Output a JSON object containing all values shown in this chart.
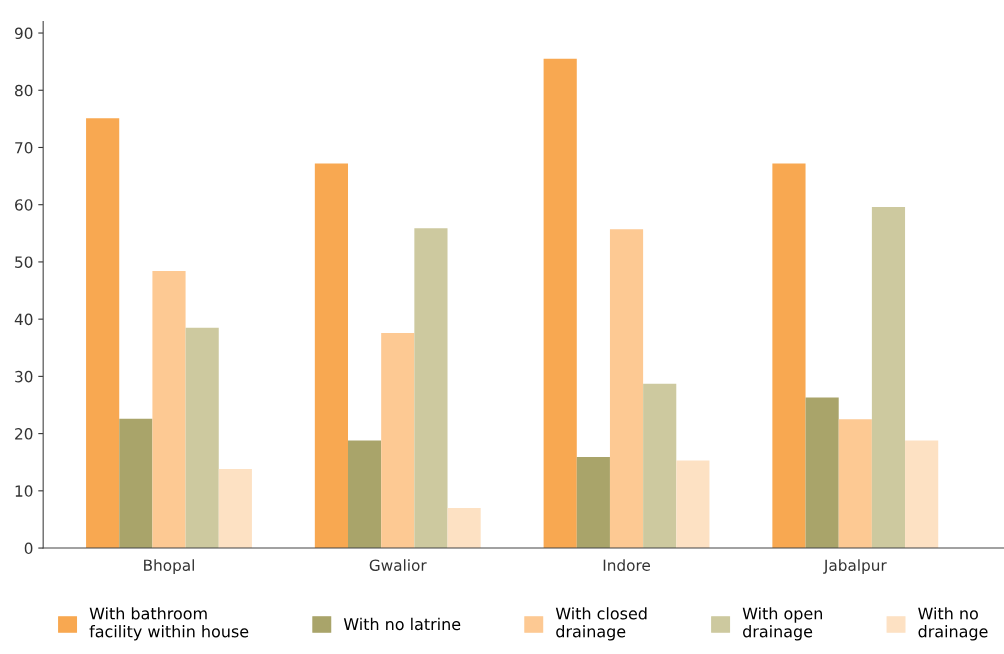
{
  "chart_data": {
    "type": "bar",
    "categories": [
      "Bhopal",
      "Gwalior",
      "Indore",
      "Jabalpur"
    ],
    "series": [
      {
        "name": "With bathroom\nfacility within house",
        "color": "#f8a851",
        "values": [
          75.1,
          67.2,
          85.5,
          67.2
        ]
      },
      {
        "name": "With no latrine",
        "color": "#a9a46a",
        "values": [
          22.6,
          18.8,
          15.9,
          26.3
        ]
      },
      {
        "name": "With closed\ndrainage",
        "color": "#fdc993",
        "values": [
          48.4,
          37.6,
          55.7,
          22.5
        ]
      },
      {
        "name": "With open\ndrainage",
        "color": "#cdc99f",
        "values": [
          38.5,
          55.9,
          28.7,
          59.6
        ]
      },
      {
        "name": "With no\ndrainage",
        "color": "#fde1c3",
        "values": [
          13.8,
          7.0,
          15.3,
          18.8
        ]
      }
    ],
    "ylim": [
      0,
      92
    ],
    "yticks": [
      0,
      10,
      20,
      30,
      40,
      50,
      60,
      70,
      80,
      90
    ],
    "grid": false,
    "legend": "bottom"
  }
}
